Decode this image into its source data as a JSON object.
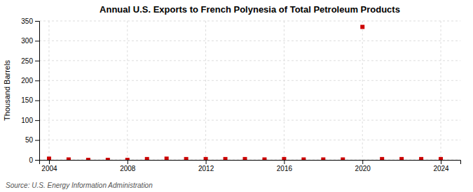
{
  "chart_data": {
    "type": "scatter",
    "title": "Annual U.S. Exports to French Polynesia of Total Petroleum Products",
    "y_label": "Thousand Barrels",
    "annotation": "Source: U.S. Energy Information Administration",
    "x": [
      2004,
      2005,
      2006,
      2007,
      2008,
      2009,
      2010,
      2011,
      2012,
      2013,
      2014,
      2015,
      2016,
      2017,
      2018,
      2019,
      2020,
      2021,
      2022,
      2023,
      2024
    ],
    "values": [
      3,
      1,
      0,
      0,
      0,
      2,
      3,
      2,
      2,
      2,
      2,
      1,
      2,
      1,
      1,
      1,
      335,
      2,
      2,
      2,
      2
    ],
    "color": "#cc0000",
    "marker": "square",
    "xlim": [
      2003.5,
      2025
    ],
    "ylim": [
      0,
      350
    ],
    "xticks": [
      2004,
      2008,
      2012,
      2016,
      2020,
      2024
    ],
    "yticks": [
      0,
      50,
      100,
      150,
      200,
      250,
      300,
      350
    ],
    "grid": true
  }
}
